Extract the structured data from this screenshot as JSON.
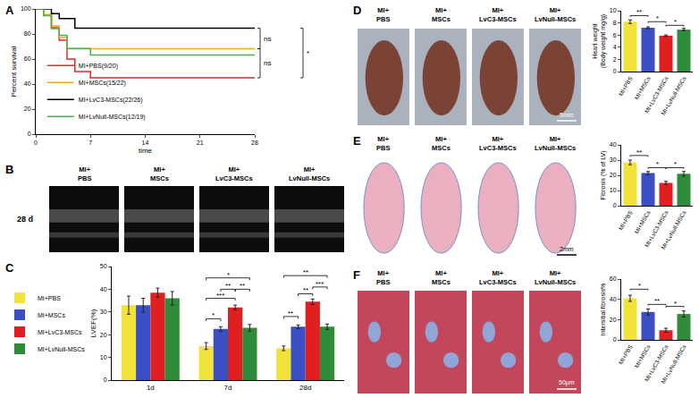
{
  "chart_data": [
    {
      "type": "line",
      "panel_label": "A",
      "x_label": "time",
      "y_label": "Percent survival",
      "xlim": [
        0,
        28
      ],
      "xticks": [
        0,
        7,
        14,
        21,
        28
      ],
      "ylim": [
        0,
        100
      ],
      "yticks": [
        0,
        20,
        40,
        60,
        80,
        100
      ],
      "grid": false,
      "legend": "lower left",
      "line_style": "step",
      "series": [
        {
          "name": "MI+PBS(9/20)",
          "color": "#e8262b",
          "x": [
            0,
            1,
            2,
            3,
            4,
            5,
            7,
            28
          ],
          "values": [
            100,
            95,
            85,
            75,
            60,
            50,
            45,
            45
          ]
        },
        {
          "name": "MI+MSCs(15/22)",
          "color": "#f5a623",
          "x": [
            0,
            1,
            2,
            3,
            4,
            28
          ],
          "values": [
            100,
            95.5,
            86.4,
            77.3,
            68.2,
            68.2
          ]
        },
        {
          "name": "MI+LvC3-MSCs(22/26)",
          "color": "#000000",
          "x": [
            0,
            2,
            3,
            5,
            28
          ],
          "values": [
            100,
            96.2,
            92.3,
            84.6,
            84.6
          ]
        },
        {
          "name": "MI+LvNull-MSCs(12/19)",
          "color": "#4caf50",
          "x": [
            0,
            1,
            2,
            3,
            4,
            7,
            28
          ],
          "values": [
            100,
            94.7,
            84.2,
            78.9,
            68.4,
            63.2,
            63.2
          ]
        }
      ],
      "comparisons": [
        {
          "series": [
            2,
            1
          ],
          "label": "ns"
        },
        {
          "series": [
            1,
            0
          ],
          "label": "ns"
        },
        {
          "series": [
            2,
            0
          ],
          "label": "*"
        }
      ]
    },
    {
      "type": "image",
      "panel_label": "B",
      "labels": [
        "MI+\nPBS",
        "MI+\nMSCs",
        "MI+\nLvC3-MSCs",
        "MI+\nLvNull-MSCs"
      ],
      "row_label": "28 d"
    },
    {
      "type": "bar",
      "panel_label": "C",
      "y_label": "LVEF(%)",
      "categories": [
        "1d",
        "7d",
        "28d"
      ],
      "ylim": [
        0,
        50
      ],
      "yticks": [
        0,
        10,
        20,
        30,
        40,
        50
      ],
      "grid": false,
      "legend": "left",
      "series": [
        {
          "name": "MI+PBS",
          "color": "#f2e33a",
          "values": [
            33,
            15,
            14
          ],
          "errors": [
            4,
            1.5,
            1
          ]
        },
        {
          "name": "MI+MSCs",
          "color": "#3b4fc4",
          "values": [
            33,
            22.5,
            23.5
          ],
          "errors": [
            3,
            1,
            0.8
          ]
        },
        {
          "name": "MI+LvC3-MSCs",
          "color": "#e02020",
          "values": [
            38.5,
            32,
            34.5
          ],
          "errors": [
            2,
            1,
            1.2
          ]
        },
        {
          "name": "MI+LvNull-MSCs",
          "color": "#2e8b3a",
          "values": [
            36,
            23,
            23.5
          ],
          "errors": [
            3,
            1.5,
            1.2
          ]
        }
      ],
      "comparisons": [
        {
          "category": 1,
          "series": [
            0,
            1
          ],
          "label": "*",
          "y": 27
        },
        {
          "category": 1,
          "series": [
            0,
            2
          ],
          "label": "***",
          "y": 36
        },
        {
          "category": 1,
          "series": [
            1,
            2
          ],
          "label": "**",
          "y": 40
        },
        {
          "category": 1,
          "series": [
            2,
            3
          ],
          "label": "**",
          "y": 40
        },
        {
          "category": 1,
          "series": [
            0,
            3
          ],
          "label": "*",
          "y": 45
        },
        {
          "category": 2,
          "series": [
            0,
            1
          ],
          "label": "**",
          "y": 28
        },
        {
          "category": 2,
          "series": [
            1,
            2
          ],
          "label": "**",
          "y": 38
        },
        {
          "category": 2,
          "series": [
            2,
            3
          ],
          "label": "***",
          "y": 41
        },
        {
          "category": 2,
          "series": [
            0,
            3
          ],
          "label": "**",
          "y": 46
        }
      ]
    },
    {
      "type": "image",
      "panel_label": "D",
      "labels": [
        "MI+\nPBS",
        "MI+\nMSCs",
        "MI+\nLvC3-MSCs",
        "MI+\nLvNull-MSCs"
      ],
      "scale_bar": "5mm"
    },
    {
      "type": "bar",
      "y_label": "Heart weight\n(Body weight mg/g)",
      "categories": [
        "MI+PBS",
        "MI+MSCs",
        "MI+LvC3-MSCs",
        "MI+LvNull-MSCs"
      ],
      "values": [
        8.2,
        7.2,
        5.9,
        6.9
      ],
      "errors": [
        0.3,
        0.15,
        0.12,
        0.2
      ],
      "colors": [
        "#f2e33a",
        "#3b4fc4",
        "#e02020",
        "#2e8b3a"
      ],
      "ylim": [
        0,
        10
      ],
      "yticks": [
        0,
        2,
        4,
        6,
        8,
        10
      ],
      "grid": false,
      "comparisons": [
        {
          "groups": [
            0,
            1
          ],
          "label": "**",
          "y": 9.2
        },
        {
          "groups": [
            1,
            2
          ],
          "label": "*",
          "y": 8.2
        },
        {
          "groups": [
            2,
            3
          ],
          "label": "*",
          "y": 7.6
        }
      ]
    },
    {
      "type": "image",
      "panel_label": "E",
      "labels": [
        "MI+\nPBS",
        "MI+\nMSCs",
        "MI+\nLvC3-MSCs",
        "MI+\nLvNull-MSCs"
      ],
      "scale_bar": "2mm"
    },
    {
      "type": "bar",
      "y_label": "Fibrosis (% of LV)",
      "categories": [
        "MI+PBS",
        "MI+MSCs",
        "MI+LvC3-MSCs",
        "MI+LvNull-MSCs"
      ],
      "values": [
        28.5,
        21.5,
        15,
        21
      ],
      "errors": [
        1.5,
        1,
        1,
        1.5
      ],
      "colors": [
        "#f2e33a",
        "#3b4fc4",
        "#e02020",
        "#2e8b3a"
      ],
      "ylim": [
        0,
        40
      ],
      "yticks": [
        0,
        10,
        20,
        30,
        40
      ],
      "grid": false,
      "comparisons": [
        {
          "groups": [
            0,
            1
          ],
          "label": "**",
          "y": 33
        },
        {
          "groups": [
            1,
            2
          ],
          "label": "*",
          "y": 25
        },
        {
          "groups": [
            2,
            3
          ],
          "label": "*",
          "y": 25
        }
      ]
    },
    {
      "type": "image",
      "panel_label": "F",
      "labels": [
        "MI+\nPBS",
        "MI+\nMSCs",
        "MI+\nLvC3-MSCs",
        "MI+\nLvNull-MSCs"
      ],
      "scale_bar": "50μm"
    },
    {
      "type": "bar",
      "y_label": "Intersitial fibrosis%",
      "categories": [
        "MI+PBS",
        "MI+MSCs",
        "MI+LvC3-MSCs",
        "MI+LvNull-MSCs"
      ],
      "values": [
        41,
        27.5,
        9.5,
        25.5
      ],
      "errors": [
        3,
        3,
        2,
        3
      ],
      "colors": [
        "#f2e33a",
        "#3b4fc4",
        "#e02020",
        "#2e8b3a"
      ],
      "ylim": [
        0,
        60
      ],
      "yticks": [
        0,
        20,
        40,
        60
      ],
      "grid": false,
      "comparisons": [
        {
          "groups": [
            0,
            1
          ],
          "label": "*",
          "y": 50
        },
        {
          "groups": [
            1,
            2
          ],
          "label": "**",
          "y": 35
        },
        {
          "groups": [
            2,
            3
          ],
          "label": "*",
          "y": 33
        }
      ]
    }
  ]
}
